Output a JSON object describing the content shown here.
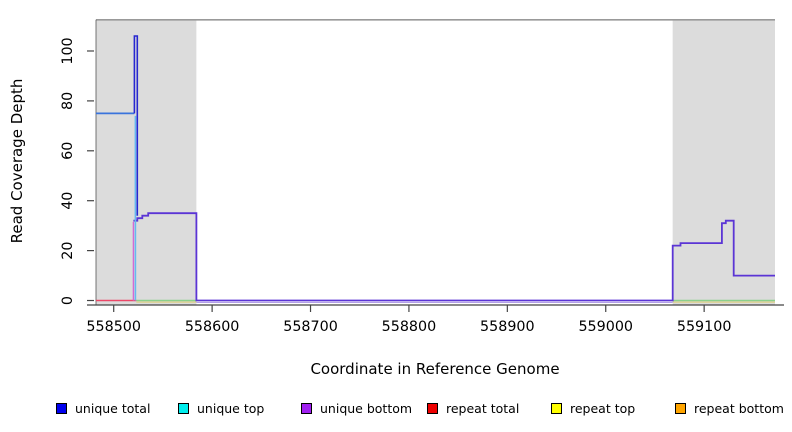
{
  "figure": {
    "x_label": "Coordinate in Reference Genome",
    "y_label": "Read Coverage Depth"
  },
  "legend": {
    "items": [
      {
        "label": "unique total",
        "color": "#0000EE"
      },
      {
        "label": "unique top",
        "color": "#00EEEE"
      },
      {
        "label": "unique bottom",
        "color": "#A020F0"
      },
      {
        "label": "repeat total",
        "color": "#EE0000"
      },
      {
        "label": "repeat top",
        "color": "#FFFF00"
      },
      {
        "label": "repeat bottom",
        "color": "#FFA500"
      }
    ]
  },
  "chart_data": {
    "type": "line",
    "title": "",
    "xlabel": "Coordinate in Reference Genome",
    "ylabel": "Read Coverage Depth",
    "x_ticks": [
      558500,
      558600,
      558700,
      558800,
      558900,
      559000,
      559100
    ],
    "y_ticks": [
      0,
      20,
      40,
      60,
      80,
      100
    ],
    "x_range": [
      558482,
      559172
    ],
    "y_range": [
      -1.8,
      112.5
    ],
    "grid": false,
    "plot_bg": "#ffffff",
    "shade_color": "#dcdcdc",
    "top_border_color": "#999999",
    "axis_color": "#444444",
    "shaded_regions": [
      [
        558482,
        558584
      ],
      [
        559068,
        559172
      ]
    ],
    "series": [
      {
        "name": "zero-shadow",
        "color": "#b4a0e8",
        "width": 1,
        "dy": 2,
        "segments": [
          [
            [
              558584,
              0
            ],
            [
              559068,
              0
            ]
          ]
        ]
      },
      {
        "name": "repeat-bottom-zero",
        "color": "#ded08a",
        "width": 1.2,
        "dy": 1.6,
        "segments": [
          [
            [
              558523,
              0
            ],
            [
              558584,
              0
            ]
          ],
          [
            [
              559068,
              0
            ],
            [
              559172,
              0
            ]
          ]
        ]
      },
      {
        "name": "repeat-top-zero",
        "color": "#8cd08c",
        "width": 1.6,
        "segments": [
          [
            [
              558523,
              0
            ],
            [
              558584,
              0
            ]
          ],
          [
            [
              559068,
              0
            ],
            [
              559172,
              0
            ]
          ]
        ]
      },
      {
        "name": "repeat-total-zero",
        "color": "#ec4868",
        "width": 1.6,
        "segments": [
          [
            [
              558482,
              0
            ],
            [
              558523,
              0
            ]
          ]
        ]
      },
      {
        "name": "unique-bottom-rise",
        "color": "#d46ad4",
        "width": 1.4,
        "segments": [
          [
            [
              558520,
              0
            ],
            [
              558520,
              31.5
            ]
          ]
        ]
      },
      {
        "name": "unique-bottom",
        "color": "#5b35d5",
        "width": 1.8,
        "segments": [
          [
            [
              558520,
              32
            ],
            [
              558524,
              32
            ],
            [
              558524,
              33
            ],
            [
              558529,
              33
            ],
            [
              558529,
              34
            ],
            [
              558535,
              34
            ],
            [
              558535,
              35
            ],
            [
              558540,
              35
            ],
            [
              558584,
              35
            ],
            [
              558584,
              0
            ],
            [
              559068,
              0
            ],
            [
              559068,
              22
            ],
            [
              559076,
              22
            ],
            [
              559076,
              23
            ],
            [
              559118,
              23
            ],
            [
              559118,
              31
            ],
            [
              559122,
              31
            ],
            [
              559122,
              32
            ],
            [
              559130,
              32
            ],
            [
              559130,
              10
            ],
            [
              559172,
              10
            ]
          ]
        ]
      },
      {
        "name": "unique-top-drop",
        "color": "#66b8f0",
        "width": 1.6,
        "segments": [
          [
            [
              558522,
              74
            ],
            [
              558522,
              0
            ]
          ]
        ]
      },
      {
        "name": "unique-total-level",
        "color": "#3a74dc",
        "width": 1.8,
        "segments": [
          [
            [
              558482,
              75
            ],
            [
              558521,
              75
            ]
          ]
        ]
      },
      {
        "name": "unique-total-spike",
        "color": "#2727d0",
        "width": 1.6,
        "segments": [
          [
            [
              558521,
              75
            ],
            [
              558521,
              106
            ],
            [
              558524,
              106
            ],
            [
              558524,
              34
            ]
          ]
        ]
      }
    ]
  }
}
